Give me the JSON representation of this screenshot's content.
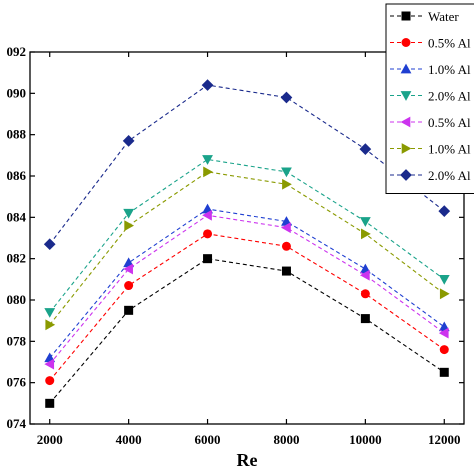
{
  "chart_data": {
    "type": "line",
    "title": "",
    "xlabel": "Re",
    "ylabel": "",
    "x": [
      2000,
      4000,
      6000,
      8000,
      10000,
      12000
    ],
    "x_tick_labels": [
      "2000",
      "4000",
      "6000",
      "8000",
      "10000",
      "12000"
    ],
    "xlim": [
      1500,
      12500
    ],
    "ylim": [
      0.074,
      0.092
    ],
    "y_ticks": [
      0.074,
      0.076,
      0.078,
      0.08,
      0.082,
      0.084,
      0.086,
      0.088,
      0.09,
      0.092
    ],
    "y_tick_labels": [
      "074",
      "076",
      "078",
      "080",
      "082",
      "084",
      "086",
      "088",
      "090",
      "092"
    ],
    "grid": false,
    "legend_placement": "top-right",
    "series": [
      {
        "name": "Water",
        "color": "#000000",
        "marker": "square",
        "values": [
          0.075,
          0.0795,
          0.082,
          0.0814,
          0.0791,
          0.0765
        ]
      },
      {
        "name": "0.5% Al",
        "color": "#ff0000",
        "marker": "circle",
        "values": [
          0.0761,
          0.0807,
          0.0832,
          0.0826,
          0.0803,
          0.0776
        ]
      },
      {
        "name": "1.0% Al",
        "color": "#1f3fd1",
        "marker": "triangle-up",
        "values": [
          0.0772,
          0.0818,
          0.0844,
          0.0838,
          0.0815,
          0.0787
        ]
      },
      {
        "name": "2.0% Al",
        "color": "#1aa38a",
        "marker": "triangle-down",
        "values": [
          0.0794,
          0.0842,
          0.0868,
          0.0862,
          0.0838,
          0.081
        ]
      },
      {
        "name": "0.5% Al",
        "color": "#cc33ee",
        "marker": "triangle-left",
        "values": [
          0.0769,
          0.0815,
          0.0841,
          0.0835,
          0.0812,
          0.0784
        ]
      },
      {
        "name": "1.0% Al",
        "color": "#8a9a00",
        "marker": "triangle-right",
        "values": [
          0.0788,
          0.0836,
          0.0862,
          0.0856,
          0.0832,
          0.0803
        ]
      },
      {
        "name": "2.0% Al",
        "color": "#1a2a8c",
        "marker": "diamond",
        "values": [
          0.0827,
          0.0877,
          0.0904,
          0.0898,
          0.0873,
          0.0843
        ]
      }
    ]
  }
}
